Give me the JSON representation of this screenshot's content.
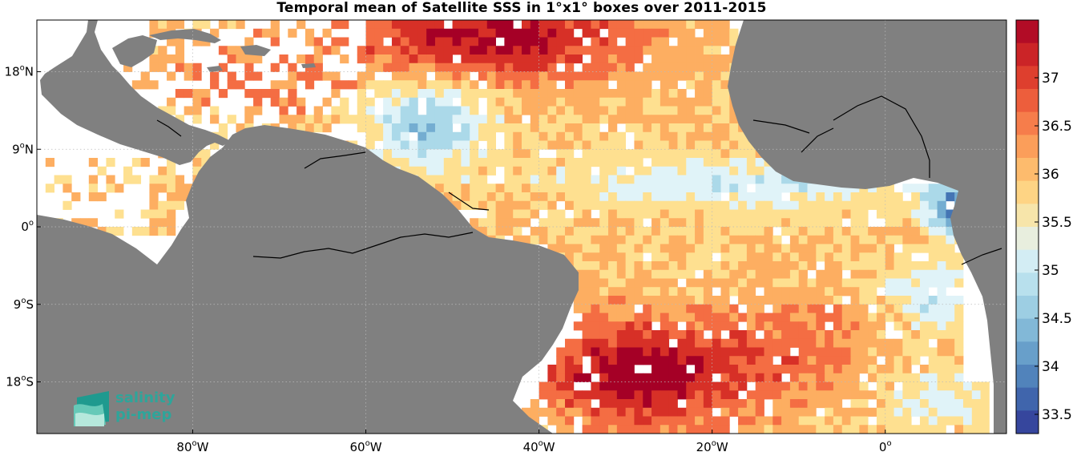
{
  "title": "Temporal mean of Satellite SSS in 1°x1° boxes over 2011-2015",
  "map": {
    "lon_range": [
      -98,
      14
    ],
    "lat_range": [
      -24,
      24
    ],
    "lon_ticks": [
      {
        "value": -80,
        "label": "80",
        "hemi": "W"
      },
      {
        "value": -60,
        "label": "60",
        "hemi": "W"
      },
      {
        "value": -40,
        "label": "40",
        "hemi": "W"
      },
      {
        "value": -20,
        "label": "20",
        "hemi": "W"
      },
      {
        "value": 0,
        "label": "0",
        "hemi": ""
      }
    ],
    "lat_ticks": [
      {
        "value": 18,
        "label": "18",
        "hemi": "N"
      },
      {
        "value": 9,
        "label": "9",
        "hemi": "N"
      },
      {
        "value": 0,
        "label": "0",
        "hemi": ""
      },
      {
        "value": -9,
        "label": "9",
        "hemi": "S"
      },
      {
        "value": -18,
        "label": "18",
        "hemi": "S"
      }
    ],
    "land_color": "#808080",
    "grid": true
  },
  "colorbar": {
    "min": 33.3,
    "max": 37.6,
    "ticks": [
      "33.5",
      "34",
      "34.5",
      "35",
      "35.5",
      "36",
      "36.5",
      "37"
    ],
    "colors": [
      "#313695",
      "#4575b4",
      "#74add1",
      "#abd9e9",
      "#e0f3f8",
      "#fee090",
      "#fdae61",
      "#f46d43",
      "#d73027",
      "#a50026"
    ]
  },
  "logo": {
    "line1": "salinity",
    "line2": "pi-mep"
  }
}
